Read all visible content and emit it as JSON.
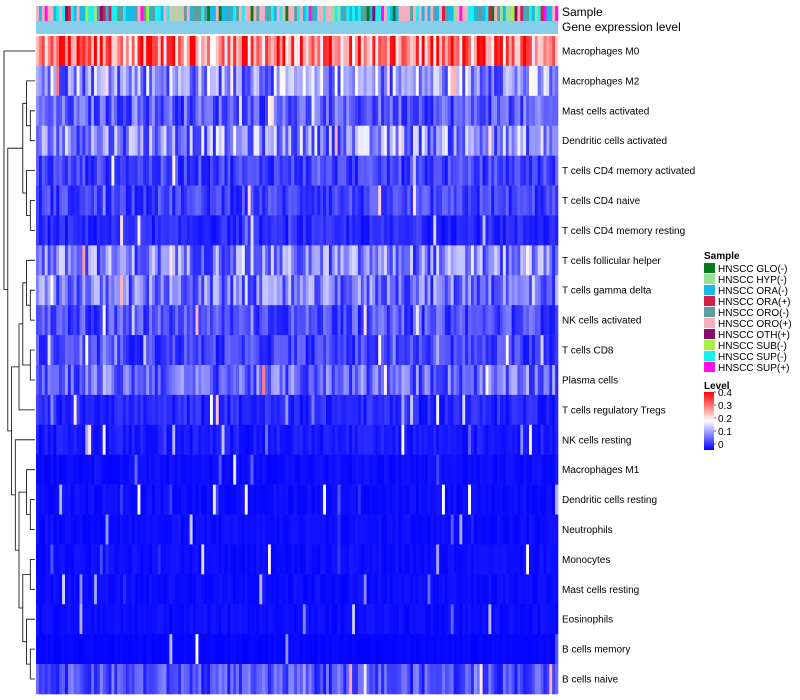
{
  "chart_data": {
    "type": "heatmap",
    "title": "",
    "annotation_rows": [
      "Sample",
      "Gene expression level"
    ],
    "rows": [
      "Macrophages M0",
      "Macrophages M2",
      "Mast cells activated",
      "Dendritic cells activated",
      "T cells CD4 memory activated",
      "T cells CD4 naive",
      "T cells CD4 memory resting",
      "T cells follicular helper",
      "T cells gamma delta",
      "NK cells activated",
      "T cells CD8",
      "Plasma cells",
      "T cells regulatory  Tregs",
      "NK cells resting",
      "Macrophages M1",
      "Dendritic cells resting",
      "Neutrophils",
      "Monocytes",
      "Mast cells resting",
      "Eosinophils",
      "B cells memory",
      "B cells naive"
    ],
    "row_mean_levels": [
      0.3,
      0.12,
      0.07,
      0.11,
      0.05,
      0.05,
      0.03,
      0.1,
      0.09,
      0.06,
      0.05,
      0.08,
      0.03,
      0.02,
      0.01,
      0.01,
      0.01,
      0.01,
      0.01,
      0.01,
      0.005,
      0.06
    ],
    "n_samples": 180,
    "sample_legend": {
      "title": "Sample",
      "groups": [
        {
          "name": "HNSCC GLO(-)",
          "color": "#0b7a1c"
        },
        {
          "name": "HNSCC HYP(-)",
          "color": "#9adf9a"
        },
        {
          "name": "HNSCC ORA(-)",
          "color": "#18b8e8"
        },
        {
          "name": "HNSCC ORA(+)",
          "color": "#d61d45"
        },
        {
          "name": "HNSCC ORO(-)",
          "color": "#5f9ea0"
        },
        {
          "name": "HNSCC ORO(+)",
          "color": "#f4b0be"
        },
        {
          "name": "HNSCC OTH(+)",
          "color": "#8b0a6e"
        },
        {
          "name": "HNSCC SUB(-)",
          "color": "#a8f040"
        },
        {
          "name": "HNSCC SUP(-)",
          "color": "#19f0f0"
        },
        {
          "name": "HNSCC SUP(+)",
          "color": "#ff10e8"
        }
      ]
    },
    "level_legend": {
      "title": "Level",
      "ticks": [
        "0.4",
        "0.3",
        "0.2",
        "0.1",
        "0"
      ],
      "range": [
        0,
        0.4
      ],
      "color_low": "#0000ff",
      "color_mid": "#ffffff",
      "color_high": "#ff0000"
    },
    "expression_bar_color": "#87ceeb"
  }
}
